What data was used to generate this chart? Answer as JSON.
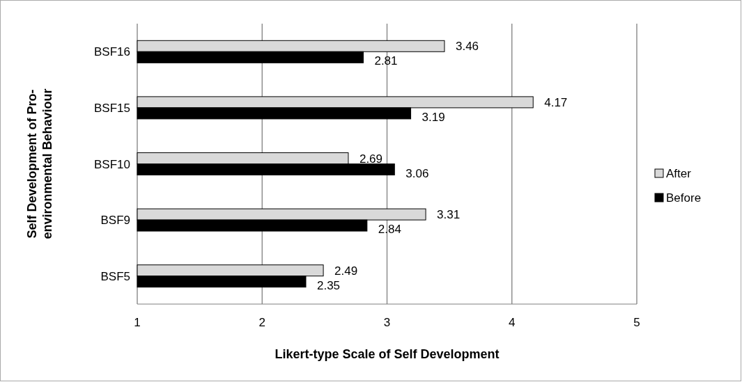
{
  "chart_data": {
    "type": "bar",
    "orientation": "horizontal",
    "xlabel": "Likert-type Scale of Self Development",
    "ylabel": "Self Development of Pro-environmental Behaviour",
    "categories": [
      "BSF16",
      "BSF15",
      "BSF10",
      "BSF9",
      "BSF5"
    ],
    "series": [
      {
        "name": "After",
        "color": "#d9d9d9",
        "values": [
          3.46,
          4.17,
          2.69,
          3.31,
          2.49
        ]
      },
      {
        "name": "Before",
        "color": "#000000",
        "values": [
          2.81,
          3.19,
          3.06,
          2.84,
          2.35
        ]
      }
    ],
    "xlim": [
      1,
      5
    ],
    "xticks": [
      1,
      2,
      3,
      4,
      5
    ],
    "grid": "x",
    "legend": "right",
    "data_labels": true
  }
}
